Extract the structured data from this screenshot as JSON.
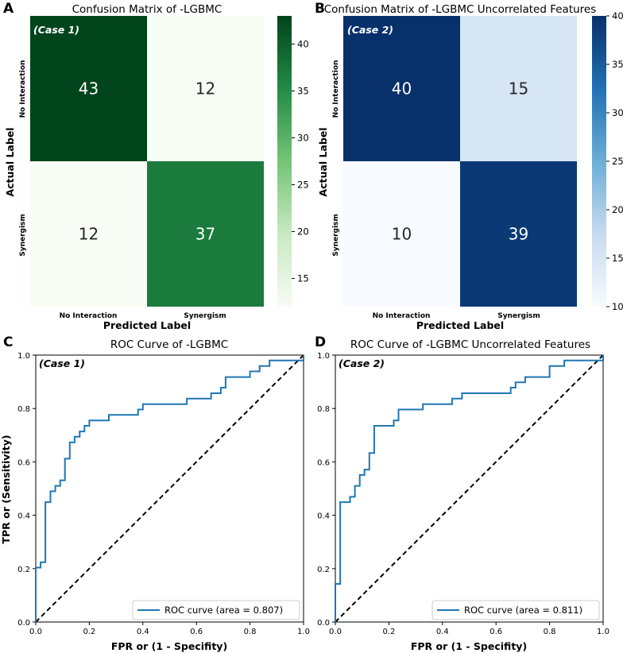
{
  "chart_data": [
    {
      "id": "A",
      "type": "heatmap",
      "panel_letter": "A",
      "title": "Confusion Matrix of -LGBMC",
      "case_label": "(Case 1)",
      "xlabel": "Predicted Label",
      "ylabel": "Actual Label",
      "x_categories": [
        "No Interaction",
        "Synergism"
      ],
      "y_categories": [
        "No Interaction",
        "Synergism"
      ],
      "values": [
        [
          43,
          12
        ],
        [
          12,
          37
        ]
      ],
      "colormap": "greens",
      "colorbar_range": [
        12,
        43
      ],
      "colorbar_ticks": [
        15,
        20,
        25,
        30,
        35,
        40
      ]
    },
    {
      "id": "B",
      "type": "heatmap",
      "panel_letter": "B",
      "title": "Confusion Matrix of -LGBMC Uncorrelated Features",
      "case_label": "(Case 2)",
      "xlabel": "Predicted Label",
      "ylabel": "Actual Label",
      "x_categories": [
        "No Interaction",
        "Synergism"
      ],
      "y_categories": [
        "No Interaction",
        "Synergism"
      ],
      "values": [
        [
          40,
          15
        ],
        [
          10,
          39
        ]
      ],
      "colormap": "blues",
      "colorbar_range": [
        10,
        40
      ],
      "colorbar_ticks": [
        10,
        15,
        20,
        25,
        30,
        35,
        40
      ]
    },
    {
      "id": "C",
      "type": "line",
      "panel_letter": "C",
      "title": "ROC Curve of -LGBMC",
      "case_label": "(Case 1)",
      "xlabel": "FPR or (1 - Specifity)",
      "ylabel": "TPR or (Sensitivity)",
      "xlim": [
        0,
        1
      ],
      "ylim": [
        0,
        1
      ],
      "xticks": [
        "0.0",
        "0.2",
        "0.4",
        "0.6",
        "0.8",
        "1.0"
      ],
      "yticks": [
        "0.0",
        "0.2",
        "0.4",
        "0.6",
        "0.8",
        "1.0"
      ],
      "legend": "ROC curve (area = 0.807)",
      "legend_position": "lower-right",
      "series": [
        {
          "name": "ROC curve (area = 0.807)",
          "color": "#1f77b4",
          "x": [
            0,
            0,
            0.018,
            0.018,
            0.036,
            0.036,
            0.055,
            0.055,
            0.073,
            0.073,
            0.091,
            0.091,
            0.109,
            0.109,
            0.127,
            0.127,
            0.145,
            0.145,
            0.164,
            0.164,
            0.182,
            0.182,
            0.2,
            0.2,
            0.273,
            0.273,
            0.309,
            0.309,
            0.382,
            0.382,
            0.4,
            0.4,
            0.491,
            0.491,
            0.564,
            0.564,
            0.6,
            0.6,
            0.655,
            0.655,
            0.691,
            0.691,
            0.709,
            0.709,
            0.8,
            0.8,
            0.836,
            0.836,
            0.873,
            0.873,
            1,
            1
          ],
          "y": [
            0,
            0.204,
            0.204,
            0.224,
            0.224,
            0.449,
            0.449,
            0.49,
            0.49,
            0.51,
            0.51,
            0.531,
            0.531,
            0.612,
            0.612,
            0.673,
            0.673,
            0.694,
            0.694,
            0.714,
            0.714,
            0.735,
            0.735,
            0.755,
            0.755,
            0.776,
            0.776,
            0.776,
            0.776,
            0.796,
            0.796,
            0.816,
            0.816,
            0.816,
            0.816,
            0.837,
            0.837,
            0.837,
            0.837,
            0.857,
            0.857,
            0.878,
            0.878,
            0.918,
            0.918,
            0.939,
            0.939,
            0.959,
            0.959,
            0.98,
            0.98,
            1
          ]
        }
      ]
    },
    {
      "id": "D",
      "type": "line",
      "panel_letter": "D",
      "title": "ROC Curve of -LGBMC Uncorrelated Features",
      "case_label": "(Case 2)",
      "xlabel": "FPR or (1 - Specifity)",
      "ylabel": "",
      "xlim": [
        0,
        1
      ],
      "ylim": [
        0,
        1
      ],
      "xticks": [
        "0.0",
        "0.2",
        "0.4",
        "0.6",
        "0.8",
        "1.0"
      ],
      "yticks": [
        "0.0",
        "0.2",
        "0.4",
        "0.6",
        "0.8",
        "1.0"
      ],
      "legend": "ROC curve (area = 0.811)",
      "legend_position": "lower-right",
      "series": [
        {
          "name": "ROC curve (area = 0.811)",
          "color": "#1f77b4",
          "x": [
            0,
            0,
            0.018,
            0.018,
            0.055,
            0.055,
            0.073,
            0.073,
            0.091,
            0.091,
            0.109,
            0.109,
            0.127,
            0.127,
            0.145,
            0.145,
            0.218,
            0.218,
            0.236,
            0.236,
            0.327,
            0.327,
            0.436,
            0.436,
            0.473,
            0.473,
            0.655,
            0.655,
            0.673,
            0.673,
            0.709,
            0.709,
            0.745,
            0.745,
            0.8,
            0.8,
            0.855,
            0.855,
            1,
            1
          ],
          "y": [
            0,
            0.143,
            0.143,
            0.449,
            0.449,
            0.469,
            0.469,
            0.51,
            0.51,
            0.551,
            0.551,
            0.571,
            0.571,
            0.633,
            0.633,
            0.735,
            0.735,
            0.755,
            0.755,
            0.796,
            0.796,
            0.816,
            0.816,
            0.837,
            0.837,
            0.857,
            0.857,
            0.878,
            0.878,
            0.898,
            0.898,
            0.918,
            0.918,
            0.918,
            0.918,
            0.959,
            0.959,
            0.98,
            0.98,
            1
          ]
        }
      ]
    }
  ]
}
